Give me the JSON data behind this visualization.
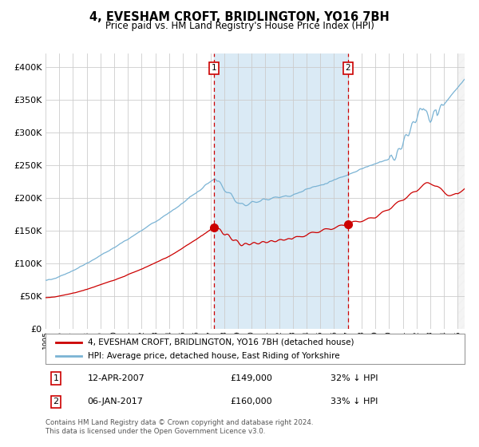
{
  "title": "4, EVESHAM CROFT, BRIDLINGTON, YO16 7BH",
  "subtitle": "Price paid vs. HM Land Registry's House Price Index (HPI)",
  "legend_line1": "4, EVESHAM CROFT, BRIDLINGTON, YO16 7BH (detached house)",
  "legend_line2": "HPI: Average price, detached house, East Riding of Yorkshire",
  "annotation1_date": "12-APR-2007",
  "annotation1_price": "£149,000",
  "annotation1_hpi": "32% ↓ HPI",
  "annotation2_date": "06-JAN-2017",
  "annotation2_price": "£160,000",
  "annotation2_hpi": "33% ↓ HPI",
  "footnote": "Contains HM Land Registry data © Crown copyright and database right 2024.\nThis data is licensed under the Open Government Licence v3.0.",
  "hpi_color": "#7ab3d4",
  "price_color": "#cc0000",
  "highlight_color": "#daeaf5",
  "vline_color": "#cc0000",
  "background_color": "#ffffff",
  "grid_color": "#cccccc",
  "ylim": [
    0,
    420000
  ],
  "yticks": [
    0,
    50000,
    100000,
    150000,
    200000,
    250000,
    300000,
    350000,
    400000
  ],
  "sale1_year": 2007.28,
  "sale2_year": 2017.02,
  "sale1_price": 149000,
  "sale2_price": 160000,
  "xlim_start": 1995,
  "xlim_end": 2025.5
}
